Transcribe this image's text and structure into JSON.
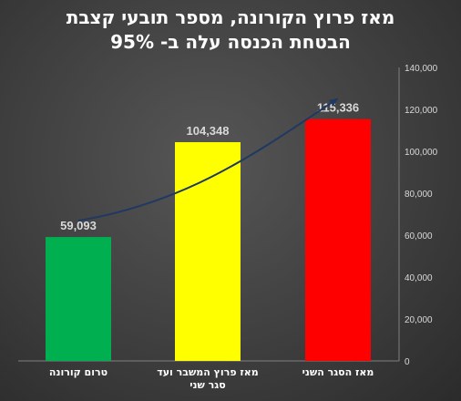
{
  "chart_data": {
    "type": "bar",
    "title_lines": [
      "מאז פרוץ הקורונה, מספר תובעי קצבת",
      "הבטחת הכנסה עלה ב- 95%"
    ],
    "categories": [
      "טרום קורונה",
      "מאז פרוץ המשבר ועד סגר שני",
      "מאז הסגר השני"
    ],
    "values": [
      59093,
      104348,
      115336
    ],
    "data_labels": [
      "59,093",
      "104,348",
      "115,336"
    ],
    "colors": [
      "#00b050",
      "#ffff00",
      "#ff0000"
    ],
    "ylim": [
      0,
      140000
    ],
    "y_ticks": [
      "0",
      "20,000",
      "40,000",
      "60,000",
      "80,000",
      "100,000",
      "120,000",
      "140,000"
    ],
    "y_axis_side": "right",
    "grid": false,
    "trend_arrow_color": "#1f3864"
  }
}
